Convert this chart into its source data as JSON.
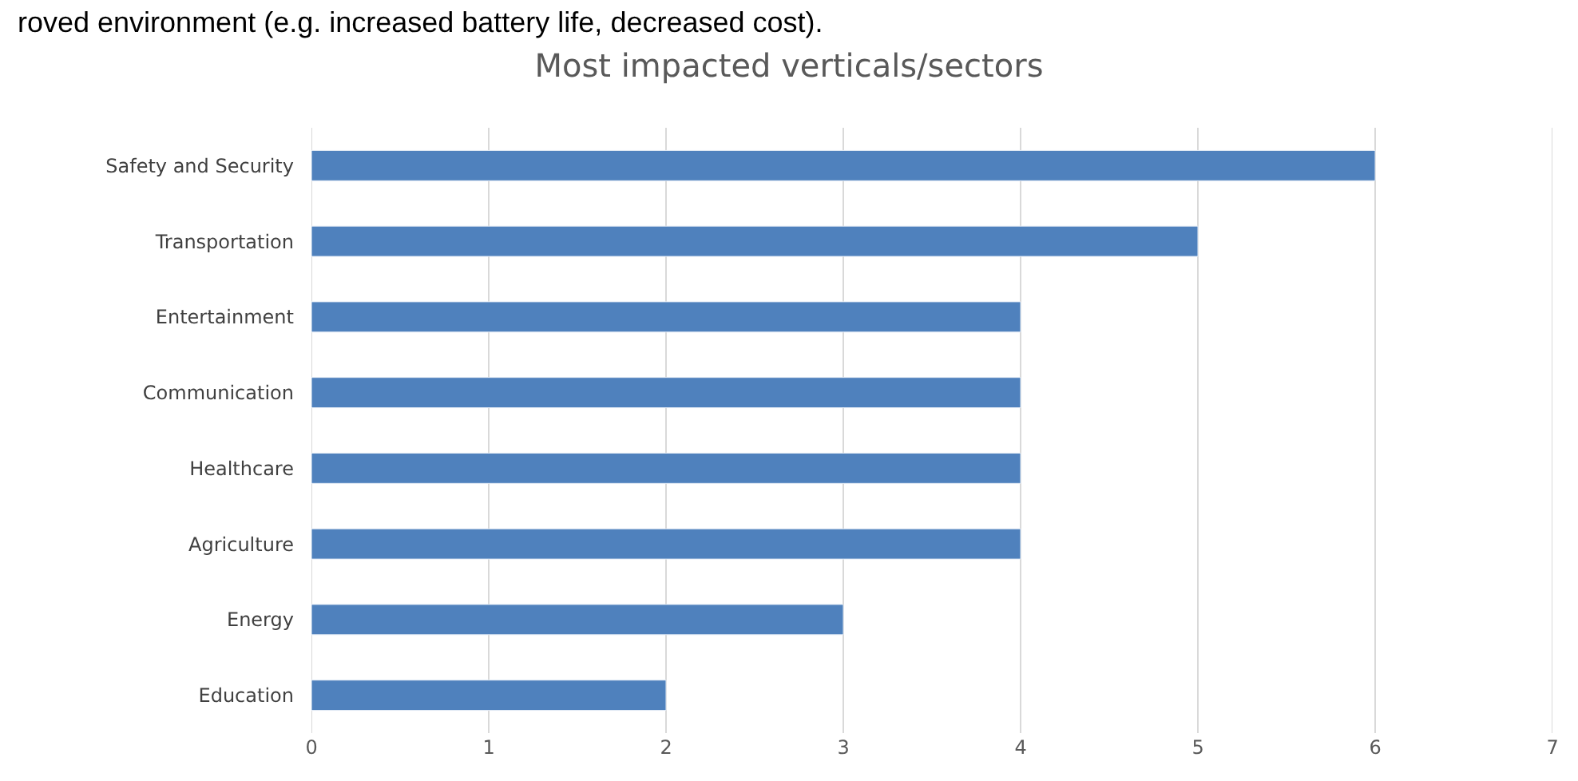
{
  "chart_data": {
    "type": "bar",
    "orientation": "horizontal",
    "title": "Most impacted verticals/sectors",
    "categories": [
      "Safety and Security",
      "Transportation",
      "Entertainment",
      "Communication",
      "Healthcare",
      "Agriculture",
      "Energy",
      "Education"
    ],
    "values": [
      6,
      5,
      4,
      4,
      4,
      4,
      3,
      2
    ],
    "color": "#4f81bd",
    "xlim": [
      0,
      7
    ],
    "xticks": [
      0,
      1,
      2,
      3,
      4,
      5,
      6,
      7
    ],
    "grid": "x",
    "annotations": [
      "roved environment (e.g. increased battery life, decreased cost)."
    ]
  }
}
